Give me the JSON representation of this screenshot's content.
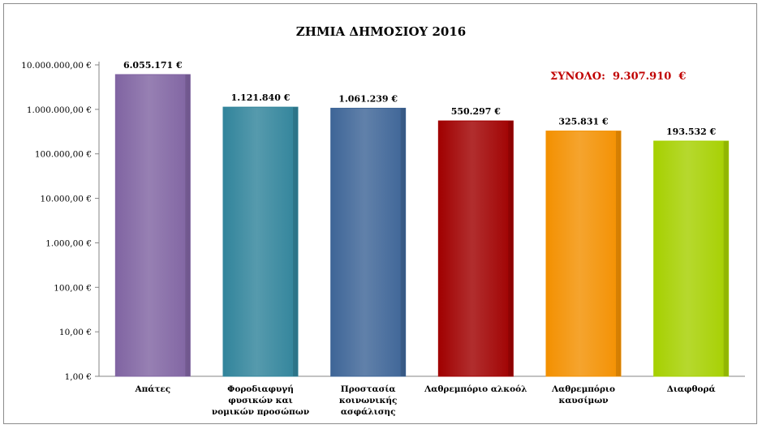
{
  "chart_data": {
    "type": "bar",
    "title": "ΖΗΜΙΑ ΔΗΜΟΣΙΟΥ 2016",
    "yscale": "log",
    "ylim": [
      1,
      10000000
    ],
    "yticks": [
      1,
      10,
      100,
      1000,
      10000,
      100000,
      1000000,
      10000000
    ],
    "ytick_labels": [
      "1,00 €",
      "10,00 €",
      "100,00 €",
      "1.000,00 €",
      "10.000,00 €",
      "100.000,00 €",
      "1.000.000,00 €",
      "10.000.000,00 €"
    ],
    "categories": [
      [
        "Απάτες"
      ],
      [
        "Φοροδιαφυγή",
        "φυσικών και",
        "νομικών προσώπων"
      ],
      [
        "Προστασία",
        "κοινωνικής",
        "ασφάλισης"
      ],
      [
        "Λαθρεμπόριο αλκοόλ"
      ],
      [
        "Λαθρεμπόριο",
        "καυσίμων"
      ],
      [
        "Διαφθορά"
      ]
    ],
    "values": [
      6055171,
      1121840,
      1061239,
      550297,
      325831,
      193532
    ],
    "value_labels": [
      "6.055.171 €",
      "1.121.840 €",
      "1.061.239 €",
      "550.297 €",
      "325.831 €",
      "193.532 €"
    ],
    "colors": [
      "#8064a2",
      "#31849b",
      "#3e6597",
      "#a00000",
      "#f39000",
      "#a6d000"
    ],
    "annotation": {
      "label": "ΣΥΝΟΛΟ:",
      "value": "9.307.910  €",
      "color": "#c00000"
    }
  }
}
